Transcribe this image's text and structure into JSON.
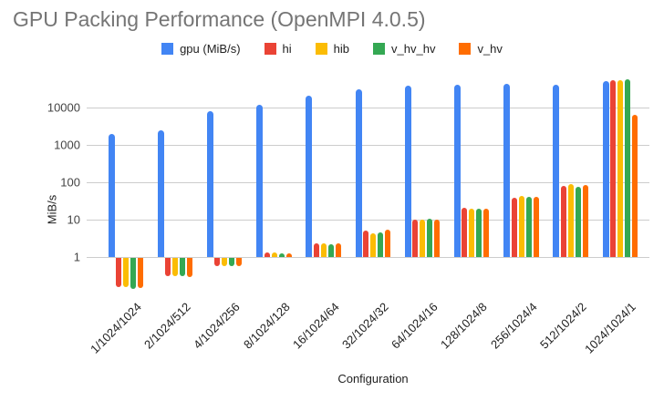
{
  "title": "GPU Packing Performance (OpenMPI 4.0.5)",
  "chart_data": {
    "type": "bar",
    "title": "GPU Packing Performance (OpenMPI 4.0.5)",
    "xlabel": "Configuration",
    "ylabel": "MiB/s",
    "y_scale": "log",
    "grid": true,
    "legend_position": "top",
    "y_ticks": [
      1,
      10,
      100,
      1000,
      10000
    ],
    "ylim": [
      0.1,
      60000
    ],
    "categories": [
      "1/1024/1024",
      "2/1024/512",
      "4/1024/256",
      "8/1024/128",
      "16/1024/64",
      "32/1024/32",
      "64/1024/16",
      "128/1024/8",
      "256/1024/4",
      "512/1024/2",
      "1024/1024/1"
    ],
    "series": [
      {
        "name": "gpu (MiB/s)",
        "color": "#4285F4",
        "values": [
          2000,
          2500,
          7800,
          12000,
          21000,
          30000,
          39000,
          41000,
          44000,
          41000,
          51000
        ]
      },
      {
        "name": "hi",
        "color": "#EA4335",
        "values": [
          0.17,
          0.33,
          0.6,
          1.3,
          2.3,
          5.1,
          10,
          21,
          38,
          80,
          55000
        ]
      },
      {
        "name": "hib",
        "color": "#FBBC04",
        "values": [
          0.17,
          0.32,
          0.6,
          1.3,
          2.3,
          4.4,
          10,
          20,
          43,
          87,
          54000
        ]
      },
      {
        "name": "v_hv_hv",
        "color": "#34A853",
        "values": [
          0.15,
          0.33,
          0.62,
          1.25,
          2.2,
          4.5,
          10.5,
          20,
          41,
          76,
          56000
        ]
      },
      {
        "name": "v_hv",
        "color": "#FF6D01",
        "values": [
          0.16,
          0.31,
          0.6,
          1.25,
          2.3,
          5.3,
          10,
          20,
          41,
          83,
          6500
        ]
      }
    ]
  },
  "colors": {
    "title": "#757575",
    "gridline": "#cccccc",
    "tick_label": "#444444",
    "category_label": "#212121"
  }
}
